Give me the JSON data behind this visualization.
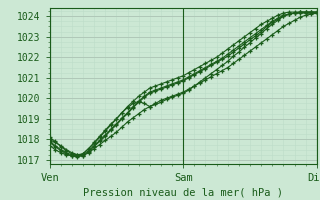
{
  "xlabel": "Pression niveau de la mer( hPa )",
  "ylim": [
    1016.8,
    1024.4
  ],
  "xlim": [
    0,
    48
  ],
  "yticks": [
    1017,
    1018,
    1019,
    1020,
    1021,
    1022,
    1023,
    1024
  ],
  "xtick_positions": [
    0,
    24,
    48
  ],
  "xtick_labels": [
    "Ven",
    "Sam",
    "Dim"
  ],
  "bg_color": "#cce8d4",
  "grid_color_major": "#b0c8b8",
  "grid_color_minor": "#bcdcc8",
  "line_color": "#1a5c1a",
  "series": [
    [
      0,
      1018.0,
      1,
      1017.85,
      2,
      1017.7,
      3,
      1017.5,
      4,
      1017.35,
      5,
      1017.25,
      6,
      1017.2,
      7,
      1017.35,
      8,
      1017.55,
      9,
      1017.75,
      10,
      1017.95,
      11,
      1018.15,
      12,
      1018.35,
      13,
      1018.6,
      14,
      1018.85,
      15,
      1019.05,
      16,
      1019.25,
      17,
      1019.45,
      18,
      1019.6,
      19,
      1019.75,
      20,
      1019.9,
      21,
      1020.0,
      22,
      1020.1,
      23,
      1020.2,
      24,
      1020.3,
      25,
      1020.45,
      26,
      1020.6,
      27,
      1020.75,
      28,
      1020.9,
      29,
      1021.05,
      30,
      1021.2,
      31,
      1021.35,
      32,
      1021.5,
      33,
      1021.7,
      34,
      1021.9,
      35,
      1022.1,
      36,
      1022.3,
      37,
      1022.5,
      38,
      1022.7,
      39,
      1022.9,
      40,
      1023.1,
      41,
      1023.3,
      42,
      1023.5,
      43,
      1023.65,
      44,
      1023.8,
      45,
      1023.95,
      46,
      1024.05,
      47,
      1024.1,
      48,
      1024.15
    ],
    [
      0,
      1018.1,
      1,
      1017.9,
      2,
      1017.65,
      3,
      1017.45,
      4,
      1017.3,
      5,
      1017.25,
      6,
      1017.3,
      7,
      1017.55,
      8,
      1017.85,
      9,
      1018.15,
      10,
      1018.45,
      11,
      1018.75,
      12,
      1019.0,
      13,
      1019.3,
      14,
      1019.55,
      15,
      1019.75,
      16,
      1019.85,
      17,
      1019.75,
      18,
      1019.6,
      19,
      1019.7,
      20,
      1019.8,
      21,
      1019.95,
      22,
      1020.05,
      23,
      1020.15,
      24,
      1020.25,
      25,
      1020.4,
      26,
      1020.6,
      27,
      1020.8,
      28,
      1021.0,
      29,
      1021.2,
      30,
      1021.4,
      31,
      1021.6,
      32,
      1021.8,
      33,
      1022.05,
      34,
      1022.25,
      35,
      1022.5,
      36,
      1022.7,
      37,
      1022.95,
      38,
      1023.15,
      39,
      1023.4,
      40,
      1023.6,
      41,
      1023.8,
      42,
      1024.0,
      43,
      1024.1,
      44,
      1024.15,
      45,
      1024.2,
      46,
      1024.2,
      47,
      1024.2,
      48,
      1024.2
    ],
    [
      0,
      1017.85,
      1,
      1017.65,
      2,
      1017.45,
      3,
      1017.3,
      4,
      1017.2,
      5,
      1017.15,
      6,
      1017.2,
      7,
      1017.4,
      8,
      1017.65,
      9,
      1017.9,
      10,
      1018.15,
      11,
      1018.45,
      12,
      1018.7,
      13,
      1019.0,
      14,
      1019.25,
      15,
      1019.55,
      16,
      1019.8,
      17,
      1020.05,
      18,
      1020.25,
      19,
      1020.35,
      20,
      1020.45,
      21,
      1020.55,
      22,
      1020.65,
      23,
      1020.75,
      24,
      1020.85,
      25,
      1021.0,
      26,
      1021.15,
      27,
      1021.3,
      28,
      1021.45,
      29,
      1021.6,
      30,
      1021.75,
      31,
      1021.9,
      32,
      1022.05,
      33,
      1022.25,
      34,
      1022.45,
      35,
      1022.65,
      36,
      1022.85,
      37,
      1023.05,
      38,
      1023.25,
      39,
      1023.5,
      40,
      1023.7,
      41,
      1023.85,
      42,
      1024.0,
      43,
      1024.1,
      44,
      1024.15,
      45,
      1024.2,
      46,
      1024.2,
      47,
      1024.2,
      48,
      1024.2
    ],
    [
      0,
      1017.9,
      1,
      1017.7,
      2,
      1017.5,
      3,
      1017.35,
      4,
      1017.25,
      5,
      1017.2,
      6,
      1017.25,
      7,
      1017.45,
      8,
      1017.7,
      9,
      1017.95,
      10,
      1018.2,
      11,
      1018.5,
      12,
      1018.75,
      13,
      1019.05,
      14,
      1019.3,
      15,
      1019.6,
      16,
      1019.85,
      17,
      1020.1,
      18,
      1020.3,
      19,
      1020.4,
      20,
      1020.5,
      21,
      1020.6,
      22,
      1020.7,
      23,
      1020.8,
      24,
      1020.9,
      25,
      1021.05,
      26,
      1021.2,
      27,
      1021.35,
      28,
      1021.5,
      29,
      1021.65,
      30,
      1021.8,
      31,
      1021.95,
      32,
      1022.15,
      33,
      1022.35,
      34,
      1022.55,
      35,
      1022.75,
      36,
      1022.95,
      37,
      1023.15,
      38,
      1023.35,
      39,
      1023.55,
      40,
      1023.75,
      41,
      1023.9,
      42,
      1024.05,
      43,
      1024.1,
      44,
      1024.15,
      45,
      1024.15,
      46,
      1024.15,
      47,
      1024.15,
      48,
      1024.15
    ],
    [
      0,
      1017.7,
      1,
      1017.5,
      2,
      1017.35,
      3,
      1017.25,
      4,
      1017.2,
      5,
      1017.2,
      6,
      1017.3,
      7,
      1017.55,
      8,
      1017.8,
      9,
      1018.1,
      10,
      1018.4,
      11,
      1018.7,
      12,
      1019.0,
      13,
      1019.3,
      14,
      1019.6,
      15,
      1019.85,
      16,
      1020.1,
      17,
      1020.3,
      18,
      1020.5,
      19,
      1020.6,
      20,
      1020.7,
      21,
      1020.8,
      22,
      1020.9,
      23,
      1021.0,
      24,
      1021.1,
      25,
      1021.25,
      26,
      1021.4,
      27,
      1021.55,
      28,
      1021.7,
      29,
      1021.85,
      30,
      1022.0,
      31,
      1022.2,
      32,
      1022.4,
      33,
      1022.6,
      34,
      1022.8,
      35,
      1023.0,
      36,
      1023.2,
      37,
      1023.4,
      38,
      1023.6,
      39,
      1023.75,
      40,
      1023.9,
      41,
      1024.05,
      42,
      1024.15,
      43,
      1024.2,
      44,
      1024.2,
      45,
      1024.2,
      46,
      1024.2,
      47,
      1024.2,
      48,
      1024.2
    ]
  ]
}
